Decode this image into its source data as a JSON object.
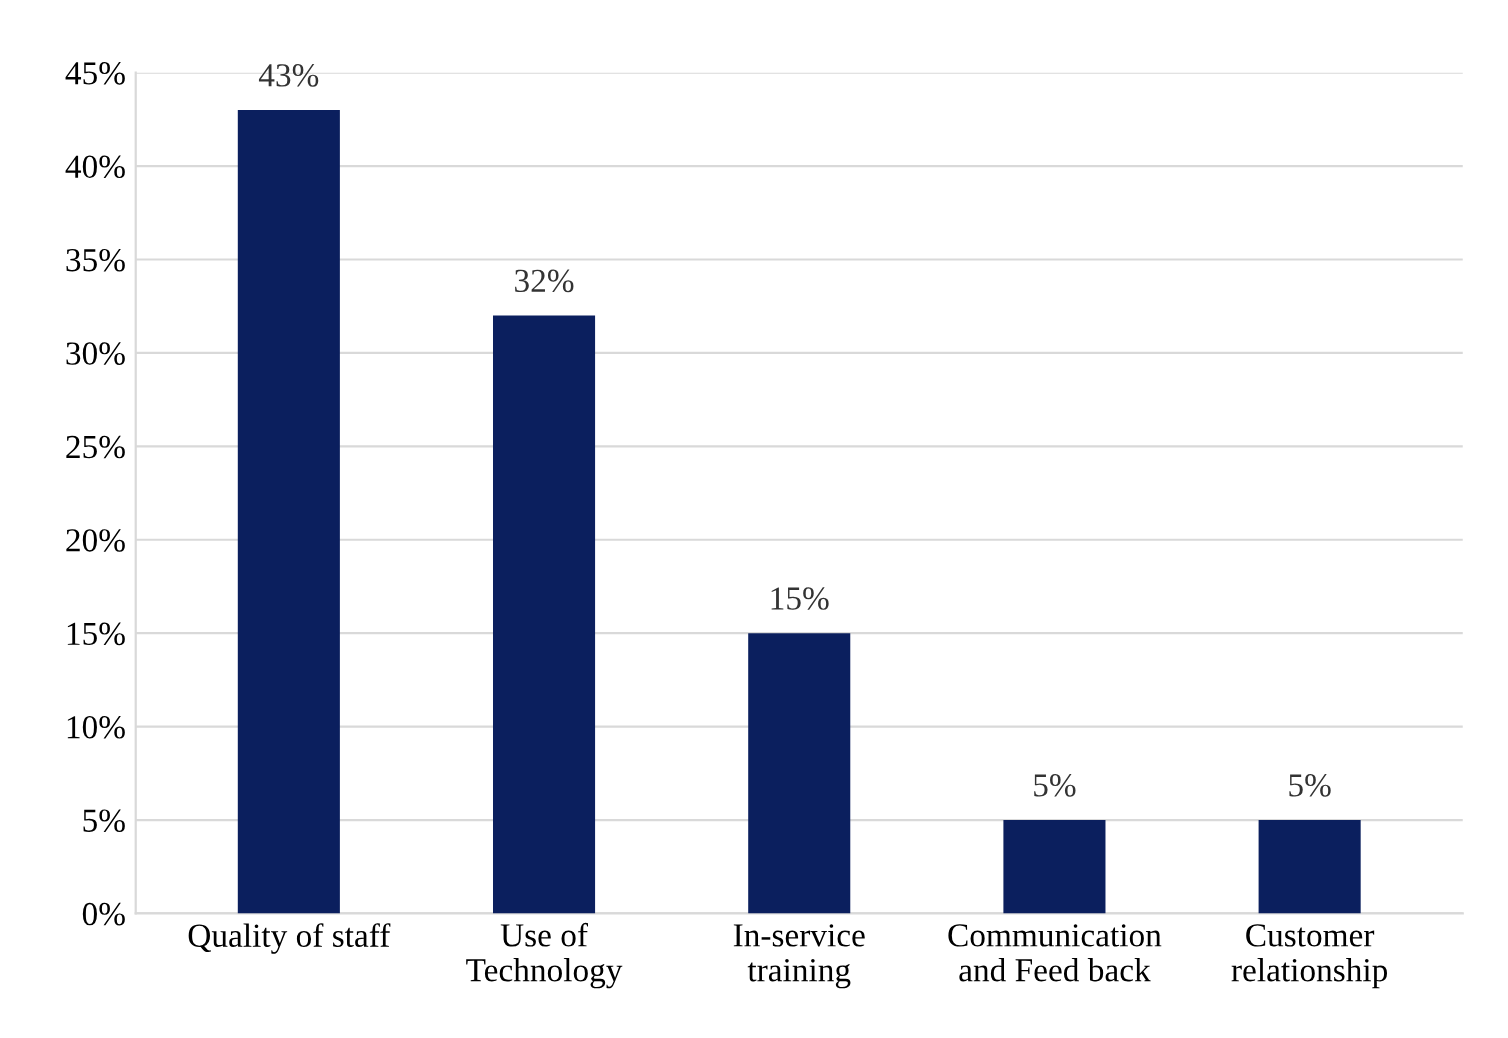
{
  "chart_data": {
    "type": "bar",
    "categories": [
      "Quality of staff",
      "Use of\nTechnology",
      "In-service\ntraining",
      "Communication\nand Feed back",
      "Customer\nrelationship"
    ],
    "values": [
      43,
      32,
      15,
      5,
      5
    ],
    "value_labels": [
      "43%",
      "32%",
      "15%",
      "5%",
      "5%"
    ],
    "color": "#0b1f5e",
    "ylim": [
      0,
      45
    ],
    "yticks": [
      {
        "value": 0,
        "label": "0%"
      },
      {
        "value": 5,
        "label": "5%"
      },
      {
        "value": 10,
        "label": "10%"
      },
      {
        "value": 15,
        "label": "15%"
      },
      {
        "value": 20,
        "label": "20%"
      },
      {
        "value": 25,
        "label": "25%"
      },
      {
        "value": 30,
        "label": "30%"
      },
      {
        "value": 35,
        "label": "35%"
      },
      {
        "value": 40,
        "label": "40%"
      },
      {
        "value": 45,
        "label": "45%"
      }
    ],
    "grid": "y",
    "legend": false
  }
}
